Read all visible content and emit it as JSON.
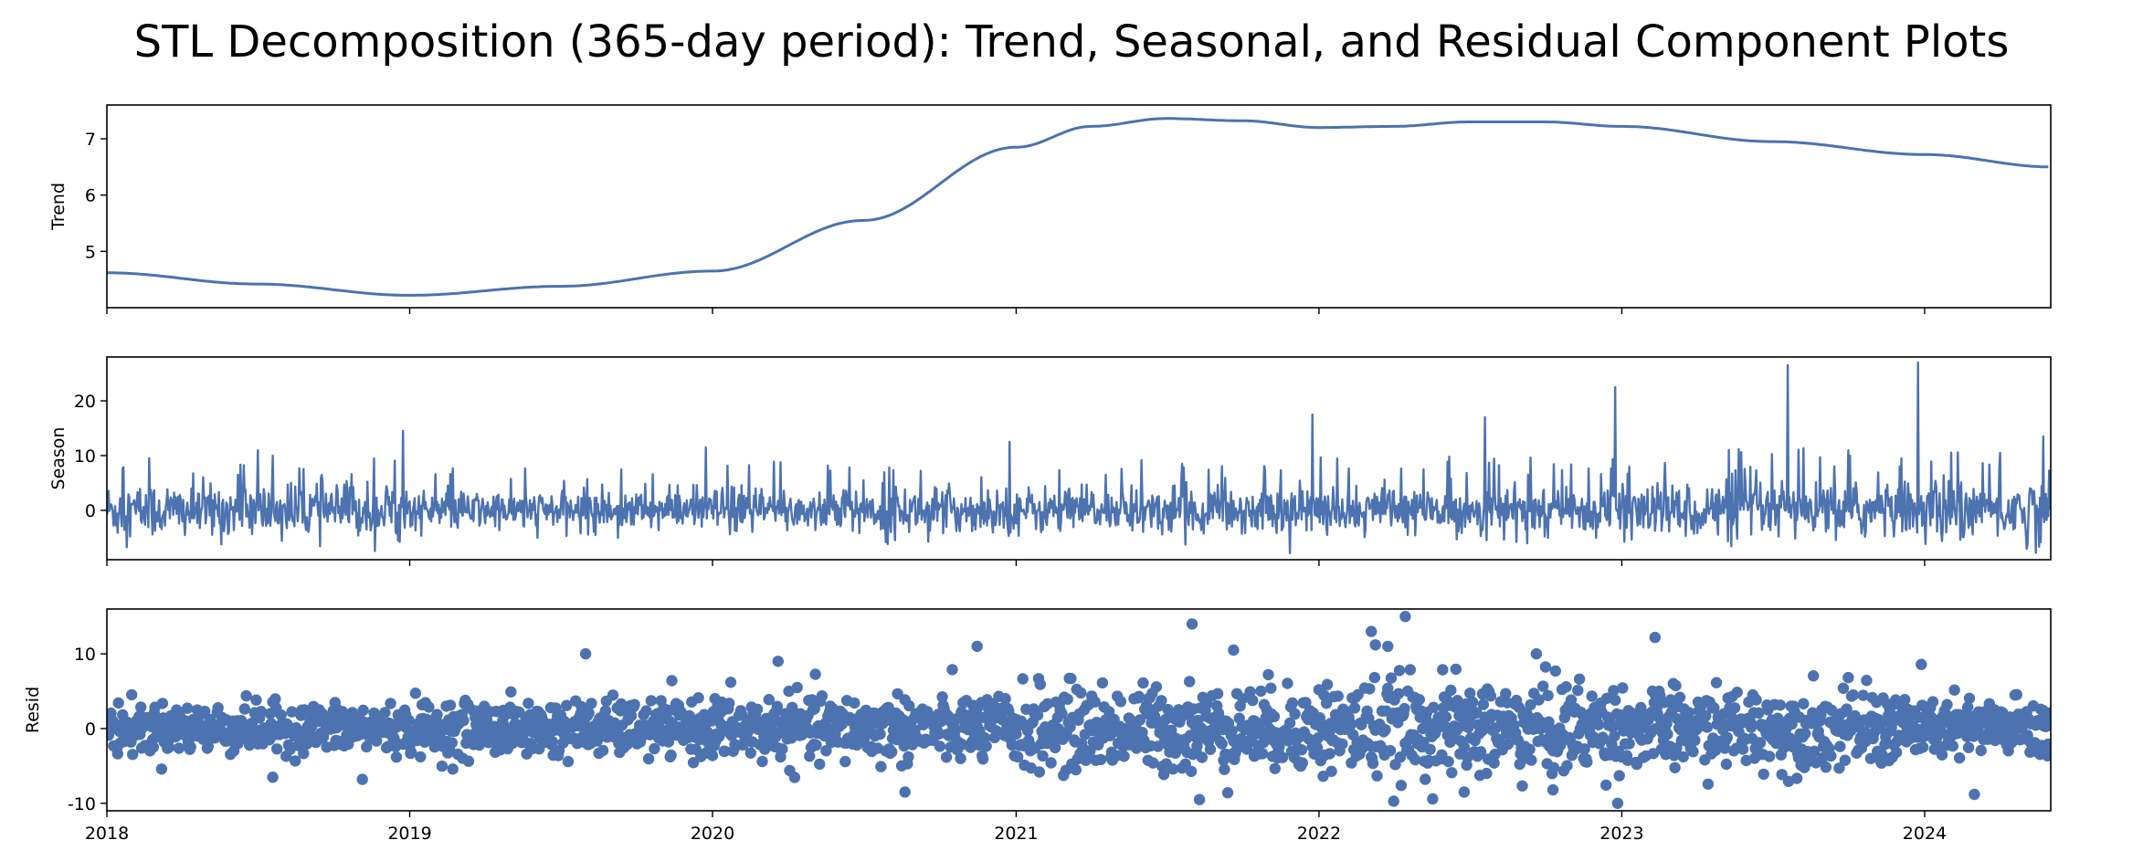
{
  "title": "STL Decomposition (365-day period): Trend, Seasonal, and Residual Component Plots",
  "colors": {
    "line": "#4c72b0",
    "axes": "#000000"
  },
  "chart_data": [
    {
      "type": "line",
      "ylabel": "Trend",
      "ylim": [
        4.0,
        7.6
      ],
      "yticks": [
        5,
        6,
        7
      ],
      "x": [
        "2018-01-01",
        "2018-07-01",
        "2019-01-01",
        "2019-07-01",
        "2020-01-01",
        "2020-07-01",
        "2021-01-01",
        "2021-04-01",
        "2021-07-01",
        "2021-10-01",
        "2022-01-01",
        "2022-04-01",
        "2022-07-01",
        "2022-10-01",
        "2023-01-01",
        "2023-07-01",
        "2024-01-01",
        "2024-06-01"
      ],
      "values": [
        4.62,
        4.42,
        4.22,
        4.38,
        4.65,
        5.55,
        6.85,
        7.22,
        7.36,
        7.32,
        7.2,
        7.22,
        7.3,
        7.3,
        7.22,
        6.95,
        6.72,
        6.5
      ]
    },
    {
      "type": "line",
      "ylabel": "Season",
      "ylim": [
        -9,
        28
      ],
      "yticks": [
        0,
        10,
        20
      ],
      "baseline": 0,
      "amplitude_by_year": [
        [
          "2018",
          3.2
        ],
        [
          "2019",
          2.2
        ],
        [
          "2020",
          2.6
        ],
        [
          "2021",
          2.6
        ],
        [
          "2022",
          2.8
        ],
        [
          "2023",
          3.2
        ],
        [
          "2024",
          3.8
        ]
      ],
      "spikes": [
        {
          "x": "2018-07-20",
          "value": 10
        },
        {
          "x": "2018-12-24",
          "value": 14.5
        },
        {
          "x": "2019-12-24",
          "value": 11.5
        },
        {
          "x": "2020-07-01",
          "value": 5.5
        },
        {
          "x": "2020-12-24",
          "value": 12.5
        },
        {
          "x": "2021-07-20",
          "value": 8.5
        },
        {
          "x": "2021-12-24",
          "value": 17.5
        },
        {
          "x": "2022-07-20",
          "value": 17
        },
        {
          "x": "2022-12-24",
          "value": 22.5
        },
        {
          "x": "2023-07-20",
          "value": 26.5
        },
        {
          "x": "2023-12-24",
          "value": 27
        },
        {
          "x": "2024-04-01",
          "value": 10.5
        }
      ]
    },
    {
      "type": "scatter",
      "ylabel": "Resid",
      "ylim": [
        -11,
        16
      ],
      "yticks": [
        -10,
        0,
        10
      ],
      "baseline": 0,
      "spread_by_year": [
        [
          "2018",
          1.6
        ],
        [
          "2019",
          1.8
        ],
        [
          "2020",
          2.2
        ],
        [
          "2021",
          2.8
        ],
        [
          "2022",
          3.2
        ],
        [
          "2023",
          2.6
        ],
        [
          "2024",
          2.0
        ]
      ],
      "outliers": [
        {
          "x": "2018-07-20",
          "value": -6.5
        },
        {
          "x": "2018-11-05",
          "value": -6.8
        },
        {
          "x": "2019-08-01",
          "value": 10
        },
        {
          "x": "2020-03-20",
          "value": 9
        },
        {
          "x": "2020-08-20",
          "value": -8.5
        },
        {
          "x": "2020-11-15",
          "value": 11
        },
        {
          "x": "2021-08-01",
          "value": 14
        },
        {
          "x": "2021-08-10",
          "value": -9.5
        },
        {
          "x": "2021-09-20",
          "value": 10.5
        },
        {
          "x": "2022-03-05",
          "value": 13
        },
        {
          "x": "2022-03-10",
          "value": 11.2
        },
        {
          "x": "2022-03-25",
          "value": 11
        },
        {
          "x": "2022-04-15",
          "value": 15
        },
        {
          "x": "2022-06-25",
          "value": -8.5
        },
        {
          "x": "2022-09-20",
          "value": 10
        },
        {
          "x": "2022-10-10",
          "value": -8.2
        },
        {
          "x": "2023-02-10",
          "value": 12.2
        },
        {
          "x": "2024-03-01",
          "value": -8.8
        }
      ]
    }
  ],
  "xaxis": {
    "range": [
      "2018-01-01",
      "2024-06-01"
    ],
    "ticks": [
      "2018",
      "2019",
      "2020",
      "2021",
      "2022",
      "2023",
      "2024"
    ]
  }
}
